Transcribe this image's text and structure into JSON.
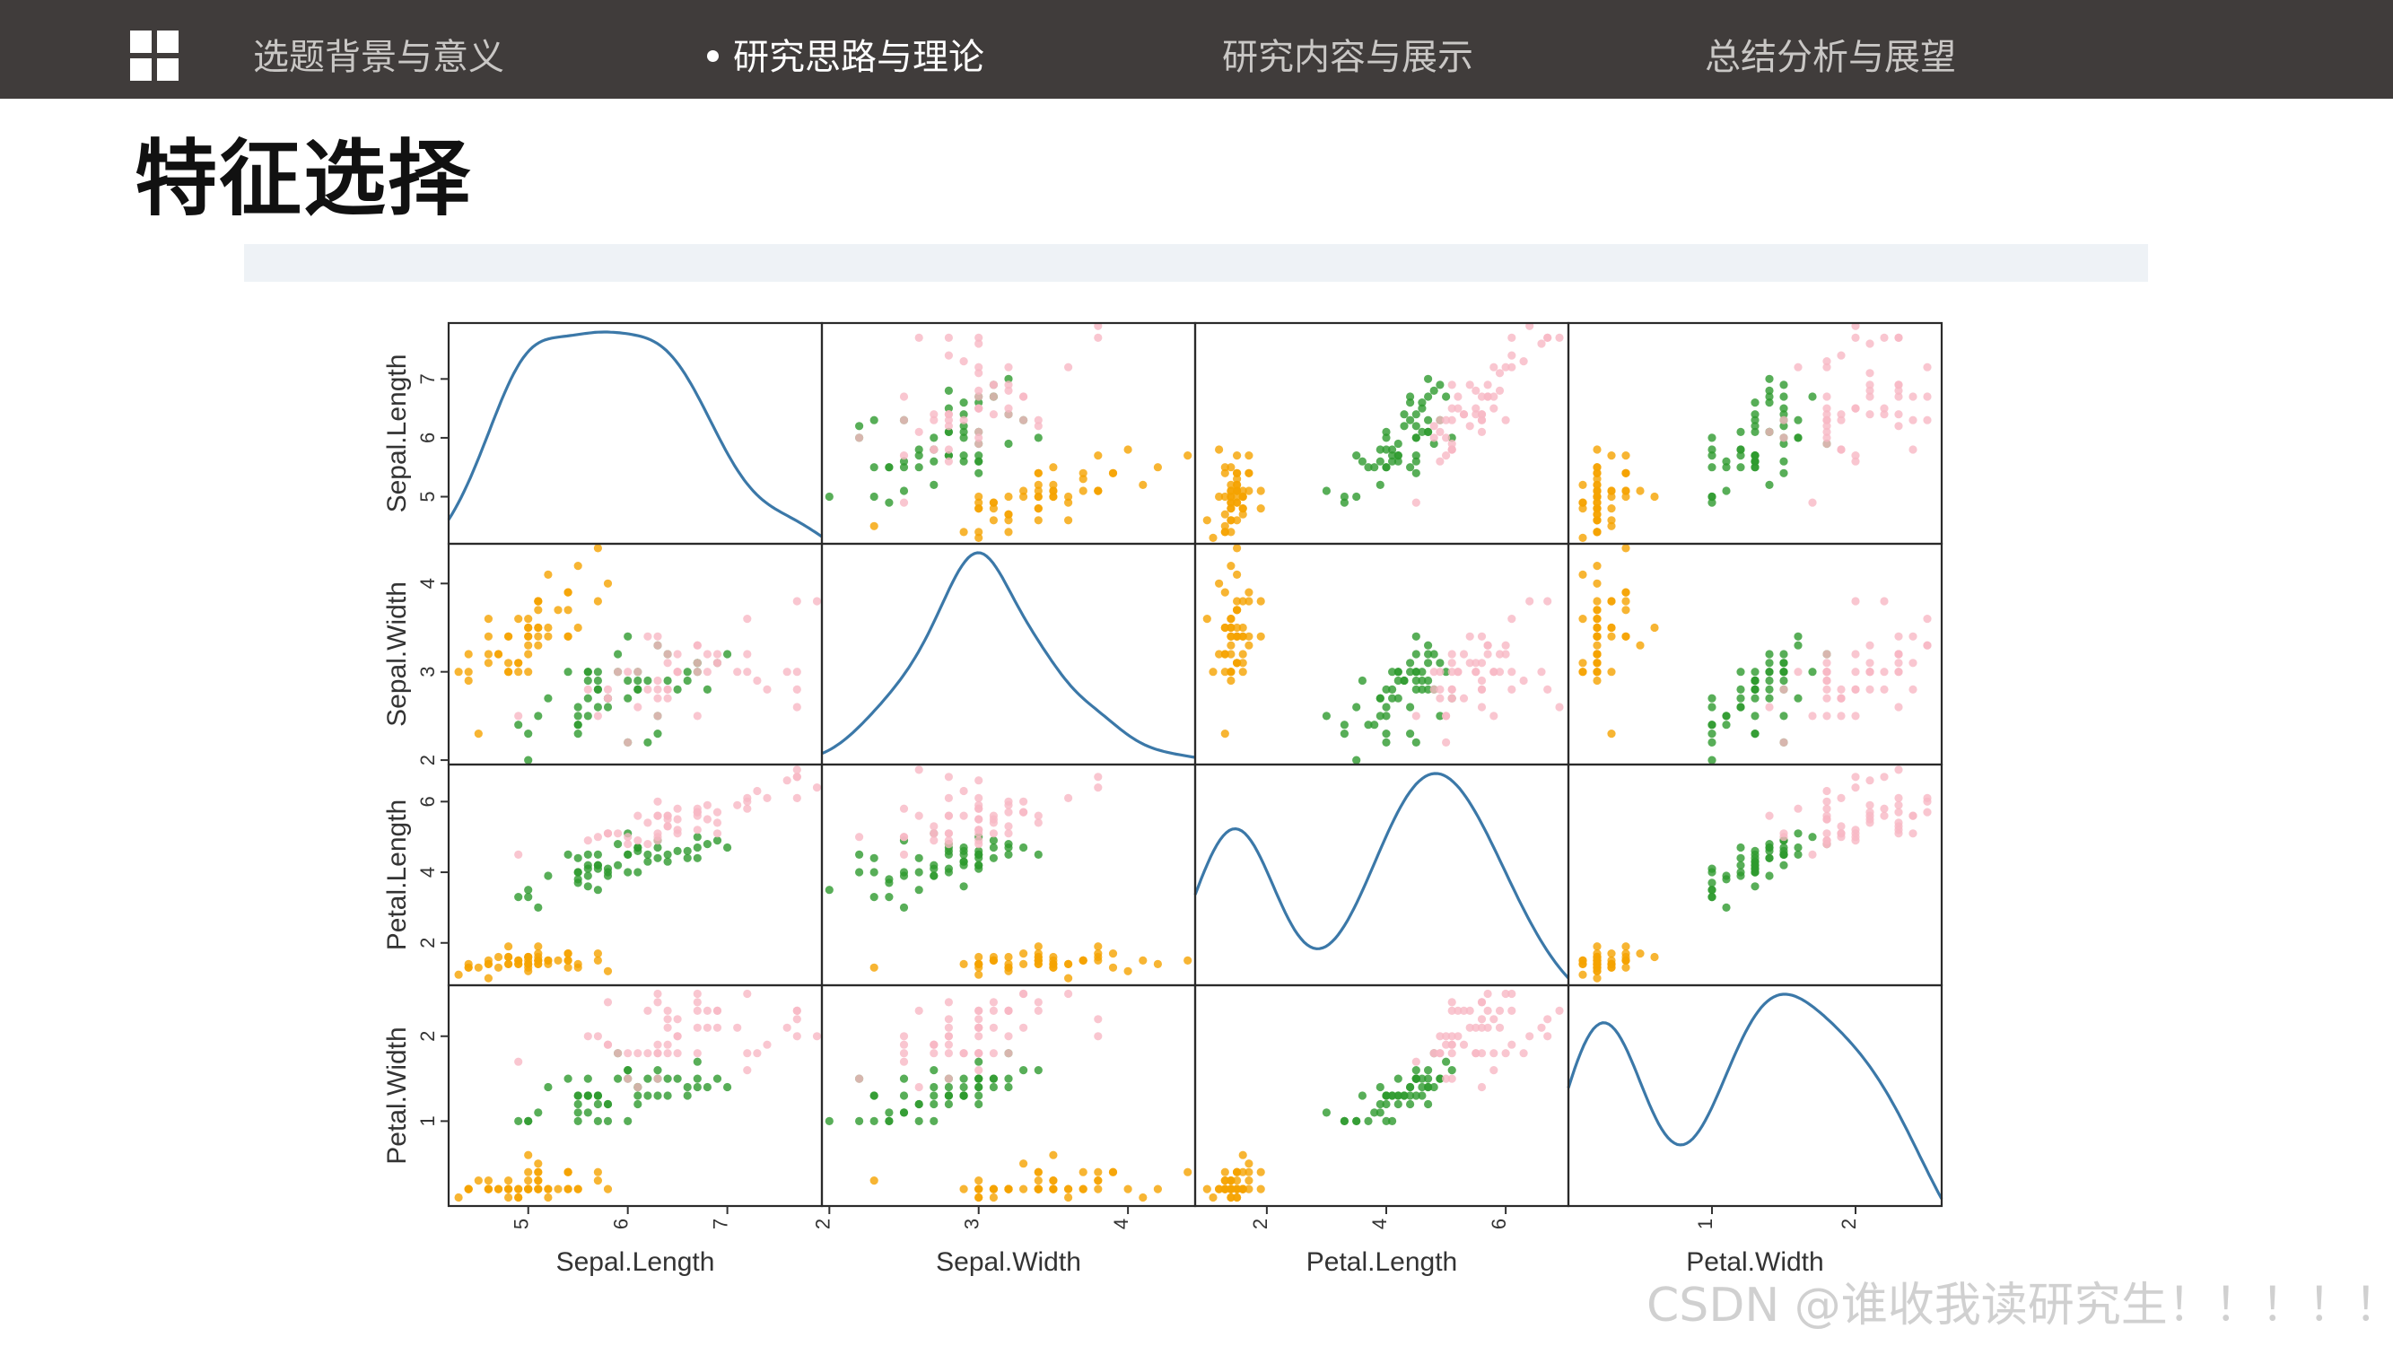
{
  "nav": {
    "items": [
      {
        "label": "选题背景与意义",
        "active": false
      },
      {
        "label": "研究思路与理论",
        "active": true
      },
      {
        "label": "研究内容与展示",
        "active": false
      },
      {
        "label": "总结分析与展望",
        "active": false
      }
    ],
    "logo_icon": "grid-icon"
  },
  "page": {
    "title": "特征选择"
  },
  "watermark": "CSDN @谁收我读研究生！！！！！",
  "colors": {
    "topbar": "#403c3b",
    "setosa": "#f5a300",
    "versicolor": "#2e9a2e",
    "virginica": "#f7b8c4",
    "kde": "#3b78a8"
  },
  "chart_data": {
    "type": "scatter",
    "kind": "scatter_matrix",
    "variables": [
      "Sepal.Length",
      "Sepal.Width",
      "Petal.Length",
      "Petal.Width"
    ],
    "axis_ranges": {
      "Sepal.Length": [
        4.2,
        7.95
      ],
      "Sepal.Width": [
        1.95,
        4.45
      ],
      "Petal.Length": [
        0.8,
        7.05
      ],
      "Petal.Width": [
        0.0,
        2.6
      ]
    },
    "ticks": {
      "Sepal.Length": [
        5,
        6,
        7
      ],
      "Sepal.Width": [
        2,
        3,
        4
      ],
      "Petal.Length": [
        2,
        4,
        6
      ],
      "Petal.Width": [
        1,
        2
      ]
    },
    "diagonal": "kde",
    "grid": false,
    "groups": [
      {
        "color": "#f5a300",
        "points": [
          [
            5.1,
            3.5,
            1.4,
            0.2
          ],
          [
            4.9,
            3.0,
            1.4,
            0.2
          ],
          [
            4.7,
            3.2,
            1.3,
            0.2
          ],
          [
            4.6,
            3.1,
            1.5,
            0.2
          ],
          [
            5.0,
            3.6,
            1.4,
            0.2
          ],
          [
            5.4,
            3.9,
            1.7,
            0.4
          ],
          [
            4.6,
            3.4,
            1.4,
            0.3
          ],
          [
            5.0,
            3.4,
            1.5,
            0.2
          ],
          [
            4.4,
            2.9,
            1.4,
            0.2
          ],
          [
            4.9,
            3.1,
            1.5,
            0.1
          ],
          [
            5.4,
            3.7,
            1.5,
            0.2
          ],
          [
            4.8,
            3.4,
            1.6,
            0.2
          ],
          [
            4.8,
            3.0,
            1.4,
            0.1
          ],
          [
            4.3,
            3.0,
            1.1,
            0.1
          ],
          [
            5.8,
            4.0,
            1.2,
            0.2
          ],
          [
            5.7,
            4.4,
            1.5,
            0.4
          ],
          [
            5.4,
            3.9,
            1.3,
            0.4
          ],
          [
            5.1,
            3.5,
            1.4,
            0.3
          ],
          [
            5.7,
            3.8,
            1.7,
            0.3
          ],
          [
            5.1,
            3.8,
            1.5,
            0.3
          ],
          [
            5.4,
            3.4,
            1.7,
            0.2
          ],
          [
            5.1,
            3.7,
            1.5,
            0.4
          ],
          [
            4.6,
            3.6,
            1.0,
            0.2
          ],
          [
            5.1,
            3.3,
            1.7,
            0.5
          ],
          [
            4.8,
            3.4,
            1.9,
            0.2
          ],
          [
            5.0,
            3.0,
            1.6,
            0.2
          ],
          [
            5.0,
            3.4,
            1.6,
            0.4
          ],
          [
            5.2,
            3.5,
            1.5,
            0.2
          ],
          [
            5.2,
            3.4,
            1.4,
            0.2
          ],
          [
            4.7,
            3.2,
            1.6,
            0.2
          ],
          [
            4.8,
            3.1,
            1.6,
            0.2
          ],
          [
            5.4,
            3.4,
            1.5,
            0.4
          ],
          [
            5.2,
            4.1,
            1.5,
            0.1
          ],
          [
            5.5,
            4.2,
            1.4,
            0.2
          ],
          [
            4.9,
            3.1,
            1.5,
            0.2
          ],
          [
            5.0,
            3.2,
            1.2,
            0.2
          ],
          [
            5.5,
            3.5,
            1.3,
            0.2
          ],
          [
            4.9,
            3.6,
            1.4,
            0.1
          ],
          [
            4.4,
            3.0,
            1.3,
            0.2
          ],
          [
            5.1,
            3.4,
            1.5,
            0.2
          ],
          [
            5.0,
            3.5,
            1.3,
            0.3
          ],
          [
            4.5,
            2.3,
            1.3,
            0.3
          ],
          [
            4.4,
            3.2,
            1.3,
            0.2
          ],
          [
            5.0,
            3.5,
            1.6,
            0.6
          ],
          [
            5.1,
            3.8,
            1.9,
            0.4
          ],
          [
            4.8,
            3.0,
            1.4,
            0.3
          ],
          [
            5.1,
            3.8,
            1.6,
            0.2
          ],
          [
            4.6,
            3.2,
            1.4,
            0.2
          ],
          [
            5.3,
            3.7,
            1.5,
            0.2
          ],
          [
            5.0,
            3.3,
            1.4,
            0.2
          ]
        ]
      },
      {
        "color": "#2e9a2e",
        "points": [
          [
            7.0,
            3.2,
            4.7,
            1.4
          ],
          [
            6.4,
            3.2,
            4.5,
            1.5
          ],
          [
            6.9,
            3.1,
            4.9,
            1.5
          ],
          [
            5.5,
            2.3,
            4.0,
            1.3
          ],
          [
            6.5,
            2.8,
            4.6,
            1.5
          ],
          [
            5.7,
            2.8,
            4.5,
            1.3
          ],
          [
            6.3,
            3.3,
            4.7,
            1.6
          ],
          [
            4.9,
            2.4,
            3.3,
            1.0
          ],
          [
            6.6,
            2.9,
            4.6,
            1.3
          ],
          [
            5.2,
            2.7,
            3.9,
            1.4
          ],
          [
            5.0,
            2.0,
            3.5,
            1.0
          ],
          [
            5.9,
            3.0,
            4.2,
            1.5
          ],
          [
            6.0,
            2.2,
            4.0,
            1.0
          ],
          [
            6.1,
            2.9,
            4.7,
            1.4
          ],
          [
            5.6,
            2.9,
            3.6,
            1.3
          ],
          [
            6.7,
            3.1,
            4.4,
            1.4
          ],
          [
            5.6,
            3.0,
            4.5,
            1.5
          ],
          [
            5.8,
            2.7,
            4.1,
            1.0
          ],
          [
            6.2,
            2.2,
            4.5,
            1.5
          ],
          [
            5.6,
            2.5,
            3.9,
            1.1
          ],
          [
            5.9,
            3.2,
            4.8,
            1.8
          ],
          [
            6.1,
            2.8,
            4.0,
            1.3
          ],
          [
            6.3,
            2.5,
            4.9,
            1.5
          ],
          [
            6.1,
            2.8,
            4.7,
            1.2
          ],
          [
            6.4,
            2.9,
            4.3,
            1.3
          ],
          [
            6.6,
            3.0,
            4.4,
            1.4
          ],
          [
            6.8,
            2.8,
            4.8,
            1.4
          ],
          [
            6.7,
            3.0,
            5.0,
            1.7
          ],
          [
            6.0,
            2.9,
            4.5,
            1.5
          ],
          [
            5.7,
            2.6,
            3.5,
            1.0
          ],
          [
            5.5,
            2.4,
            3.8,
            1.1
          ],
          [
            5.5,
            2.4,
            3.7,
            1.0
          ],
          [
            5.8,
            2.7,
            3.9,
            1.2
          ],
          [
            6.0,
            2.7,
            5.1,
            1.6
          ],
          [
            5.4,
            3.0,
            4.5,
            1.5
          ],
          [
            6.0,
            3.4,
            4.5,
            1.6
          ],
          [
            6.7,
            3.1,
            4.7,
            1.5
          ],
          [
            6.3,
            2.3,
            4.4,
            1.3
          ],
          [
            5.6,
            3.0,
            4.1,
            1.3
          ],
          [
            5.5,
            2.5,
            4.0,
            1.3
          ],
          [
            5.5,
            2.6,
            4.4,
            1.2
          ],
          [
            6.1,
            3.0,
            4.6,
            1.4
          ],
          [
            5.8,
            2.6,
            4.0,
            1.2
          ],
          [
            5.0,
            2.3,
            3.3,
            1.0
          ],
          [
            5.6,
            2.7,
            4.2,
            1.3
          ],
          [
            5.7,
            3.0,
            4.2,
            1.2
          ],
          [
            5.7,
            2.9,
            4.2,
            1.3
          ],
          [
            6.2,
            2.9,
            4.3,
            1.3
          ],
          [
            5.1,
            2.5,
            3.0,
            1.1
          ],
          [
            5.7,
            2.8,
            4.1,
            1.3
          ]
        ]
      },
      {
        "color": "#f7b8c4",
        "points": [
          [
            6.3,
            3.3,
            6.0,
            2.5
          ],
          [
            5.8,
            2.7,
            5.1,
            1.9
          ],
          [
            7.1,
            3.0,
            5.9,
            2.1
          ],
          [
            6.3,
            2.9,
            5.6,
            1.8
          ],
          [
            6.5,
            3.0,
            5.8,
            2.2
          ],
          [
            7.6,
            3.0,
            6.6,
            2.1
          ],
          [
            4.9,
            2.5,
            4.5,
            1.7
          ],
          [
            7.3,
            2.9,
            6.3,
            1.8
          ],
          [
            6.7,
            2.5,
            5.8,
            1.8
          ],
          [
            7.2,
            3.6,
            6.1,
            2.5
          ],
          [
            6.5,
            3.2,
            5.1,
            2.0
          ],
          [
            6.4,
            2.7,
            5.3,
            1.9
          ],
          [
            6.8,
            3.0,
            5.5,
            2.1
          ],
          [
            5.7,
            2.5,
            5.0,
            2.0
          ],
          [
            5.8,
            2.8,
            5.1,
            2.4
          ],
          [
            6.4,
            3.2,
            5.3,
            2.3
          ],
          [
            6.5,
            3.0,
            5.5,
            1.8
          ],
          [
            7.7,
            3.8,
            6.7,
            2.2
          ],
          [
            7.7,
            2.6,
            6.9,
            2.3
          ],
          [
            6.0,
            2.2,
            5.0,
            1.5
          ],
          [
            6.9,
            3.2,
            5.7,
            2.3
          ],
          [
            5.6,
            2.8,
            4.9,
            2.0
          ],
          [
            7.7,
            2.8,
            6.7,
            2.0
          ],
          [
            6.3,
            2.7,
            4.9,
            1.8
          ],
          [
            6.7,
            3.3,
            5.7,
            2.1
          ],
          [
            7.2,
            3.2,
            6.0,
            1.8
          ],
          [
            6.2,
            2.8,
            4.8,
            1.8
          ],
          [
            6.1,
            3.0,
            4.9,
            1.8
          ],
          [
            6.4,
            2.8,
            5.6,
            2.1
          ],
          [
            7.2,
            3.0,
            5.8,
            1.6
          ],
          [
            7.4,
            2.8,
            6.1,
            1.9
          ],
          [
            7.9,
            3.8,
            6.4,
            2.0
          ],
          [
            6.4,
            2.8,
            5.6,
            2.2
          ],
          [
            6.3,
            2.8,
            5.1,
            1.5
          ],
          [
            6.1,
            2.6,
            5.6,
            1.4
          ],
          [
            7.7,
            3.0,
            6.1,
            2.3
          ],
          [
            6.3,
            3.4,
            5.6,
            2.4
          ],
          [
            6.4,
            3.1,
            5.5,
            1.8
          ],
          [
            6.0,
            3.0,
            4.8,
            1.8
          ],
          [
            6.9,
            3.1,
            5.4,
            2.1
          ],
          [
            6.7,
            3.1,
            5.6,
            2.4
          ],
          [
            6.9,
            3.1,
            5.1,
            2.3
          ],
          [
            5.8,
            2.7,
            5.1,
            1.9
          ],
          [
            6.8,
            3.2,
            5.9,
            2.3
          ],
          [
            6.7,
            3.3,
            5.7,
            2.5
          ],
          [
            6.7,
            3.0,
            5.2,
            2.3
          ],
          [
            6.3,
            2.5,
            5.0,
            1.9
          ],
          [
            6.5,
            3.0,
            5.2,
            2.0
          ],
          [
            6.2,
            3.4,
            5.4,
            2.3
          ],
          [
            5.9,
            3.0,
            5.1,
            1.8
          ]
        ]
      }
    ]
  }
}
